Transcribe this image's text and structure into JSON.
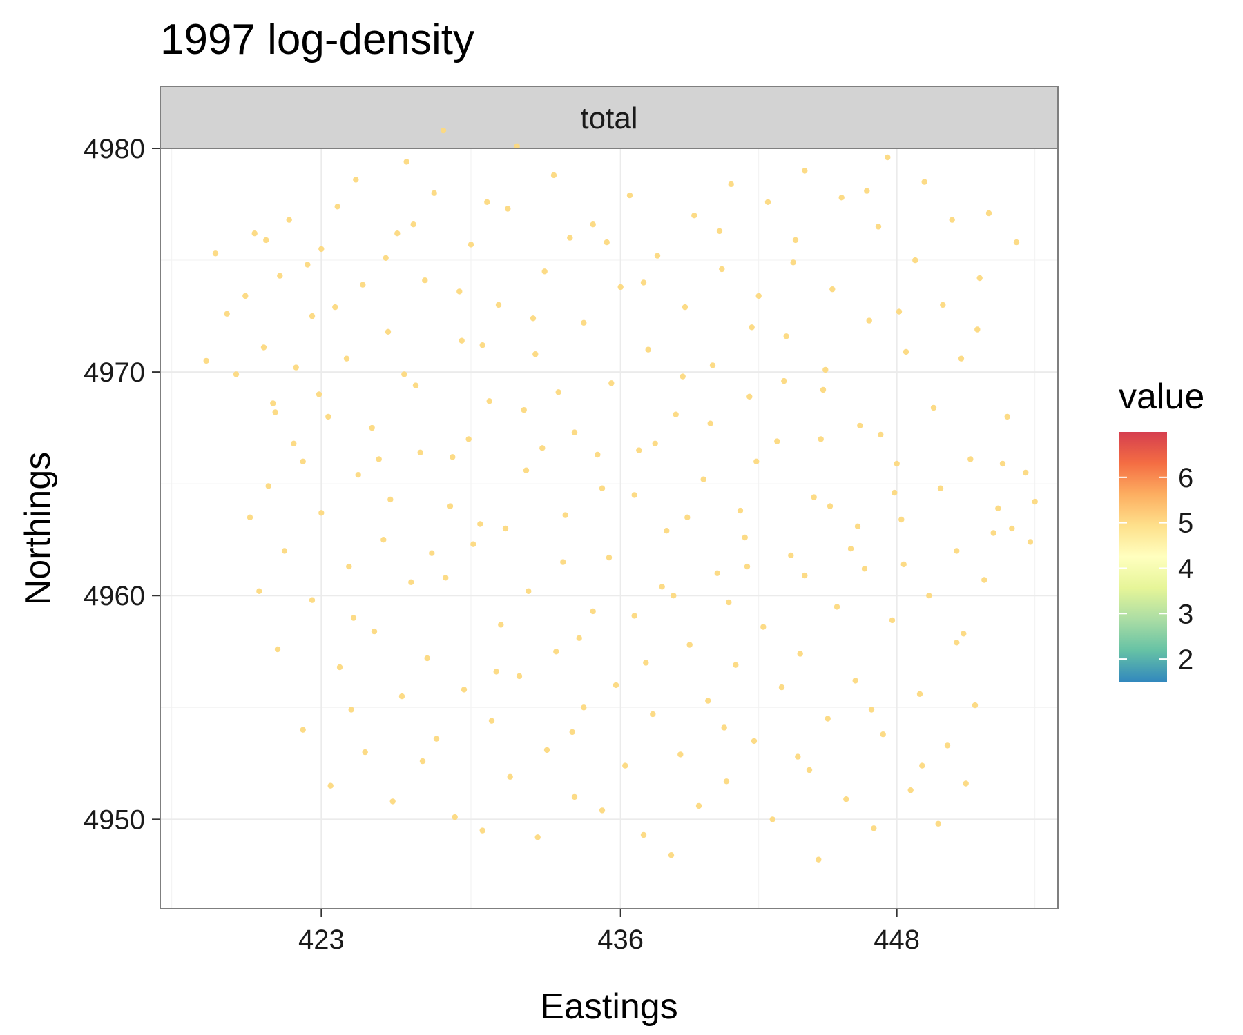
{
  "chart_data": {
    "type": "scatter",
    "title": "1997 log-density",
    "facet": "total",
    "xlabel": "Eastings",
    "ylabel": "Northings",
    "xlim": [
      416.0,
      455.0
    ],
    "ylim": [
      4946.0,
      4980.0
    ],
    "x_ticks": [
      423,
      436,
      448
    ],
    "y_ticks": [
      4950,
      4960,
      4970,
      4980
    ],
    "grid": true,
    "legend": {
      "title": "value",
      "position": "right",
      "range": [
        1.5,
        7.0
      ],
      "labels": [
        2,
        3,
        4,
        5,
        6
      ],
      "palette": [
        "#3288bd",
        "#66c2a5",
        "#abdda4",
        "#e6f598",
        "#ffffbf",
        "#fee08b",
        "#fdae61",
        "#f46d43",
        "#d53e4f"
      ]
    },
    "point_color": "#fcd97f",
    "value_range_of_points": [
      4.9,
      5.1
    ],
    "points_note_excluded": true,
    "points": [
      [
        418.0,
        4970.5,
        5.0
      ],
      [
        418.4,
        4975.3,
        5.0
      ],
      [
        418.9,
        4972.6,
        5.0
      ],
      [
        419.3,
        4969.9,
        5.0
      ],
      [
        419.7,
        4973.4,
        5.0
      ],
      [
        420.1,
        4976.2,
        5.0
      ],
      [
        420.5,
        4971.1,
        5.0
      ],
      [
        420.9,
        4968.6,
        5.0
      ],
      [
        421.2,
        4974.3,
        5.0
      ],
      [
        421.6,
        4976.8,
        5.0
      ],
      [
        421.9,
        4970.2,
        5.0
      ],
      [
        422.2,
        4966.0,
        5.0
      ],
      [
        422.6,
        4972.5,
        5.0
      ],
      [
        423.0,
        4975.5,
        5.0
      ],
      [
        423.3,
        4968.0,
        5.0
      ],
      [
        423.7,
        4977.4,
        5.0
      ],
      [
        424.1,
        4970.6,
        5.0
      ],
      [
        424.5,
        4978.6,
        5.0
      ],
      [
        424.8,
        4973.9,
        5.0
      ],
      [
        425.2,
        4967.5,
        5.0
      ],
      [
        419.9,
        4963.5,
        5.0
      ],
      [
        420.3,
        4960.2,
        5.0
      ],
      [
        420.7,
        4964.9,
        5.0
      ],
      [
        421.1,
        4957.6,
        5.0
      ],
      [
        421.4,
        4962.0,
        5.0
      ],
      [
        421.8,
        4966.8,
        5.0
      ],
      [
        422.2,
        4954.0,
        5.0
      ],
      [
        422.6,
        4959.8,
        5.0
      ],
      [
        423.0,
        4963.7,
        5.0
      ],
      [
        423.4,
        4951.5,
        5.0
      ],
      [
        423.8,
        4956.8,
        5.0
      ],
      [
        424.2,
        4961.3,
        5.0
      ],
      [
        424.6,
        4965.4,
        5.0
      ],
      [
        424.9,
        4953.0,
        5.0
      ],
      [
        425.3,
        4958.4,
        5.0
      ],
      [
        425.7,
        4962.5,
        5.0
      ],
      [
        426.1,
        4950.8,
        5.0
      ],
      [
        426.5,
        4955.5,
        5.0
      ],
      [
        426.9,
        4960.6,
        5.0
      ],
      [
        427.3,
        4966.4,
        5.0
      ],
      [
        425.9,
        4971.8,
        5.0
      ],
      [
        426.3,
        4976.2,
        5.0
      ],
      [
        426.7,
        4979.4,
        5.0
      ],
      [
        427.1,
        4969.4,
        5.0
      ],
      [
        427.5,
        4974.1,
        5.0
      ],
      [
        427.9,
        4978.0,
        5.0
      ],
      [
        428.3,
        4980.8,
        5.0
      ],
      [
        428.7,
        4966.2,
        5.0
      ],
      [
        429.1,
        4971.4,
        5.0
      ],
      [
        429.5,
        4975.7,
        5.0
      ],
      [
        429.9,
        4963.2,
        5.0
      ],
      [
        430.3,
        4968.7,
        5.0
      ],
      [
        430.7,
        4973.0,
        5.0
      ],
      [
        431.1,
        4977.3,
        5.0
      ],
      [
        431.5,
        4980.1,
        5.0
      ],
      [
        431.9,
        4965.6,
        5.0
      ],
      [
        432.3,
        4970.8,
        5.0
      ],
      [
        432.7,
        4974.5,
        5.0
      ],
      [
        433.1,
        4978.8,
        5.0
      ],
      [
        433.5,
        4961.5,
        5.0
      ],
      [
        427.6,
        4957.2,
        5.0
      ],
      [
        428.0,
        4953.6,
        5.0
      ],
      [
        428.4,
        4960.8,
        5.0
      ],
      [
        428.8,
        4950.1,
        5.0
      ],
      [
        429.2,
        4955.8,
        5.0
      ],
      [
        429.6,
        4962.3,
        5.0
      ],
      [
        430.0,
        4949.5,
        5.0
      ],
      [
        430.4,
        4954.4,
        5.0
      ],
      [
        430.8,
        4958.7,
        5.0
      ],
      [
        431.2,
        4951.9,
        5.0
      ],
      [
        431.6,
        4956.4,
        5.0
      ],
      [
        432.0,
        4960.2,
        5.0
      ],
      [
        432.4,
        4949.2,
        5.0
      ],
      [
        432.8,
        4953.1,
        5.0
      ],
      [
        433.2,
        4957.5,
        5.0
      ],
      [
        433.6,
        4963.6,
        5.0
      ],
      [
        434.0,
        4951.0,
        5.0
      ],
      [
        434.4,
        4955.0,
        5.0
      ],
      [
        434.8,
        4959.3,
        5.0
      ],
      [
        435.2,
        4950.4,
        5.0
      ],
      [
        434.0,
        4967.3,
        5.0
      ],
      [
        434.4,
        4972.2,
        5.0
      ],
      [
        434.8,
        4976.6,
        5.0
      ],
      [
        435.2,
        4964.8,
        5.0
      ],
      [
        435.6,
        4969.5,
        5.0
      ],
      [
        436.0,
        4973.8,
        5.0
      ],
      [
        436.4,
        4977.9,
        5.0
      ],
      [
        436.8,
        4966.5,
        5.0
      ],
      [
        437.2,
        4971.0,
        5.0
      ],
      [
        437.6,
        4975.2,
        5.0
      ],
      [
        438.0,
        4962.9,
        5.0
      ],
      [
        438.4,
        4968.1,
        5.0
      ],
      [
        438.8,
        4972.9,
        5.0
      ],
      [
        439.2,
        4977.0,
        5.0
      ],
      [
        439.6,
        4965.2,
        5.0
      ],
      [
        440.0,
        4970.3,
        5.0
      ],
      [
        440.4,
        4974.6,
        5.0
      ],
      [
        440.8,
        4978.4,
        5.0
      ],
      [
        441.2,
        4963.8,
        5.0
      ],
      [
        441.6,
        4968.9,
        5.0
      ],
      [
        435.8,
        4956.0,
        5.0
      ],
      [
        436.2,
        4952.4,
        5.0
      ],
      [
        436.6,
        4959.1,
        5.0
      ],
      [
        437.0,
        4949.3,
        5.0
      ],
      [
        437.4,
        4954.7,
        5.0
      ],
      [
        437.8,
        4960.4,
        5.0
      ],
      [
        438.2,
        4948.4,
        5.0
      ],
      [
        438.6,
        4952.9,
        5.0
      ],
      [
        439.0,
        4957.8,
        5.0
      ],
      [
        439.4,
        4950.6,
        5.0
      ],
      [
        439.8,
        4955.3,
        5.0
      ],
      [
        440.2,
        4961.0,
        5.0
      ],
      [
        440.6,
        4951.7,
        5.0
      ],
      [
        441.0,
        4956.9,
        5.0
      ],
      [
        441.4,
        4962.6,
        5.0
      ],
      [
        441.8,
        4953.5,
        5.0
      ],
      [
        442.2,
        4958.6,
        5.0
      ],
      [
        442.6,
        4950.0,
        5.0
      ],
      [
        443.0,
        4955.9,
        5.0
      ],
      [
        443.4,
        4961.8,
        5.0
      ],
      [
        442.0,
        4973.4,
        5.0
      ],
      [
        442.4,
        4977.6,
        5.0
      ],
      [
        442.8,
        4966.9,
        5.0
      ],
      [
        443.2,
        4971.6,
        5.0
      ],
      [
        443.6,
        4975.9,
        5.0
      ],
      [
        444.0,
        4979.0,
        5.0
      ],
      [
        444.4,
        4964.4,
        5.0
      ],
      [
        444.8,
        4969.2,
        5.0
      ],
      [
        445.2,
        4973.7,
        5.0
      ],
      [
        445.6,
        4977.8,
        5.0
      ],
      [
        446.0,
        4962.1,
        5.0
      ],
      [
        446.4,
        4967.6,
        5.0
      ],
      [
        446.8,
        4972.3,
        5.0
      ],
      [
        447.2,
        4976.5,
        5.0
      ],
      [
        447.6,
        4979.6,
        5.0
      ],
      [
        448.0,
        4965.9,
        5.0
      ],
      [
        448.4,
        4970.9,
        5.0
      ],
      [
        448.8,
        4975.0,
        5.0
      ],
      [
        449.2,
        4978.5,
        5.0
      ],
      [
        449.6,
        4968.4,
        5.0
      ],
      [
        443.8,
        4957.4,
        5.0
      ],
      [
        444.2,
        4952.2,
        5.0
      ],
      [
        444.6,
        4948.2,
        5.0
      ],
      [
        445.0,
        4954.5,
        5.0
      ],
      [
        445.4,
        4959.5,
        5.0
      ],
      [
        445.8,
        4950.9,
        5.0
      ],
      [
        446.2,
        4956.2,
        5.0
      ],
      [
        446.6,
        4961.2,
        5.0
      ],
      [
        447.0,
        4949.6,
        5.0
      ],
      [
        447.4,
        4953.8,
        5.0
      ],
      [
        447.8,
        4958.9,
        5.0
      ],
      [
        448.2,
        4963.4,
        5.0
      ],
      [
        448.6,
        4951.3,
        5.0
      ],
      [
        449.0,
        4955.6,
        5.0
      ],
      [
        449.4,
        4960.0,
        5.0
      ],
      [
        449.8,
        4949.8,
        5.0
      ],
      [
        450.2,
        4953.3,
        5.0
      ],
      [
        450.6,
        4957.9,
        5.0
      ],
      [
        451.0,
        4951.6,
        5.0
      ],
      [
        451.4,
        4955.1,
        5.0
      ],
      [
        450.0,
        4973.0,
        5.0
      ],
      [
        450.4,
        4976.8,
        5.0
      ],
      [
        450.8,
        4970.6,
        5.0
      ],
      [
        451.2,
        4966.1,
        5.0
      ],
      [
        451.6,
        4974.2,
        5.0
      ],
      [
        452.0,
        4977.1,
        5.0
      ],
      [
        452.4,
        4963.9,
        5.0
      ],
      [
        452.8,
        4968.0,
        5.0
      ],
      [
        453.2,
        4975.8,
        5.0
      ],
      [
        453.6,
        4965.5,
        5.0
      ],
      [
        454.0,
        4964.2,
        5.0
      ],
      [
        452.2,
        4962.8,
        5.0
      ],
      [
        451.8,
        4960.7,
        5.0
      ],
      [
        453.0,
        4963.0,
        5.0
      ],
      [
        450.6,
        4962.0,
        5.0
      ],
      [
        449.9,
        4964.8,
        5.0
      ],
      [
        451.5,
        4971.9,
        5.0
      ],
      [
        452.6,
        4965.9,
        5.0
      ],
      [
        453.8,
        4962.4,
        5.0
      ],
      [
        450.9,
        4958.3,
        5.0
      ],
      [
        422.9,
        4969.0,
        5.0
      ],
      [
        426.0,
        4964.3,
        5.0
      ],
      [
        429.4,
        4967.0,
        5.0
      ],
      [
        432.6,
        4966.6,
        5.0
      ],
      [
        435.5,
        4961.7,
        5.0
      ],
      [
        438.9,
        4963.5,
        5.0
      ],
      [
        441.9,
        4966.0,
        5.0
      ],
      [
        445.1,
        4964.0,
        5.0
      ],
      [
        448.3,
        4961.4,
        5.0
      ],
      [
        424.4,
        4959.0,
        5.0
      ],
      [
        427.8,
        4961.9,
        5.0
      ],
      [
        431.0,
        4963.0,
        5.0
      ],
      [
        434.2,
        4958.1,
        5.0
      ],
      [
        437.5,
        4966.8,
        5.0
      ],
      [
        440.7,
        4959.7,
        5.0
      ],
      [
        444.0,
        4960.9,
        5.0
      ],
      [
        447.3,
        4967.2,
        5.0
      ],
      [
        426.6,
        4969.9,
        5.0
      ],
      [
        430.0,
        4971.2,
        5.0
      ],
      [
        433.3,
        4969.1,
        5.0
      ],
      [
        436.6,
        4964.5,
        5.0
      ],
      [
        439.9,
        4967.7,
        5.0
      ],
      [
        443.1,
        4969.6,
        5.0
      ],
      [
        446.3,
        4963.1,
        5.0
      ],
      [
        423.6,
        4972.9,
        5.0
      ],
      [
        427.0,
        4976.6,
        5.0
      ],
      [
        430.2,
        4977.6,
        5.0
      ],
      [
        433.8,
        4976.0,
        5.0
      ],
      [
        437.0,
        4974.0,
        5.0
      ],
      [
        440.3,
        4976.3,
        5.0
      ],
      [
        443.5,
        4974.9,
        5.0
      ],
      [
        446.7,
        4978.1,
        5.0
      ],
      [
        421.0,
        4968.2,
        5.0
      ],
      [
        424.3,
        4954.9,
        5.0
      ],
      [
        427.4,
        4952.6,
        5.0
      ],
      [
        430.6,
        4956.6,
        5.0
      ],
      [
        433.9,
        4953.9,
        5.0
      ],
      [
        437.1,
        4957.0,
        5.0
      ],
      [
        440.5,
        4954.1,
        5.0
      ],
      [
        443.7,
        4952.8,
        5.0
      ],
      [
        446.9,
        4954.9,
        5.0
      ],
      [
        449.1,
        4952.4,
        5.0
      ],
      [
        425.5,
        4966.1,
        5.0
      ],
      [
        428.6,
        4964.0,
        5.0
      ],
      [
        431.8,
        4968.3,
        5.0
      ],
      [
        435.0,
        4966.3,
        5.0
      ],
      [
        438.3,
        4960.0,
        5.0
      ],
      [
        441.5,
        4961.3,
        5.0
      ],
      [
        444.7,
        4967.0,
        5.0
      ],
      [
        447.9,
        4964.6,
        5.0
      ],
      [
        420.6,
        4975.9,
        5.0
      ],
      [
        422.4,
        4974.8,
        5.0
      ],
      [
        425.8,
        4975.1,
        5.0
      ],
      [
        429.0,
        4973.6,
        5.0
      ],
      [
        432.2,
        4972.4,
        5.0
      ],
      [
        435.4,
        4975.8,
        5.0
      ],
      [
        438.7,
        4969.8,
        5.0
      ],
      [
        441.7,
        4972.0,
        5.0
      ],
      [
        444.9,
        4970.1,
        5.0
      ],
      [
        448.1,
        4972.7,
        5.0
      ]
    ]
  }
}
